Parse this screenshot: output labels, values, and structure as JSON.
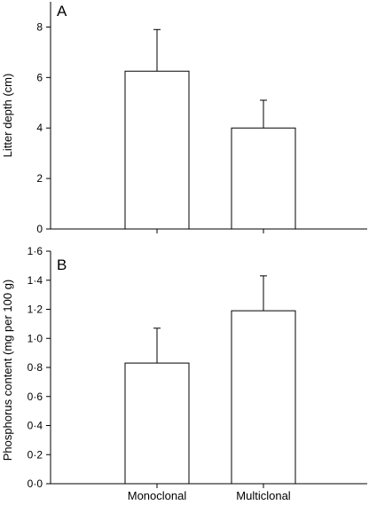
{
  "chart_data": [
    {
      "type": "bar",
      "panel_label": "A",
      "categories": [
        "Monoclonal",
        "Multiclonal"
      ],
      "values": [
        6.25,
        4.0
      ],
      "errors": [
        1.65,
        1.1
      ],
      "ylabel": "Litter depth (cm)",
      "ylim": [
        0,
        9
      ],
      "yticks": [
        "0",
        "2",
        "4",
        "6",
        "8"
      ],
      "ytick_values": [
        0,
        2,
        4,
        6,
        8
      ],
      "grid": false
    },
    {
      "type": "bar",
      "panel_label": "B",
      "categories": [
        "Monoclonal",
        "Multiclonal"
      ],
      "values": [
        0.83,
        1.19
      ],
      "errors": [
        0.24,
        0.24
      ],
      "ylabel": "Phosphorus content (mg per 100 g)",
      "ylim": [
        0,
        1.6
      ],
      "yticks": [
        "0·0",
        "0·2",
        "0·4",
        "0·6",
        "0·8",
        "1·0",
        "1·2",
        "1·4",
        "1·6"
      ],
      "ytick_values": [
        0,
        0.2,
        0.4,
        0.6,
        0.8,
        1.0,
        1.2,
        1.4,
        1.6
      ],
      "grid": false
    }
  ],
  "xaxis": {
    "categories": [
      "Monoclonal",
      "Multiclonal"
    ]
  }
}
